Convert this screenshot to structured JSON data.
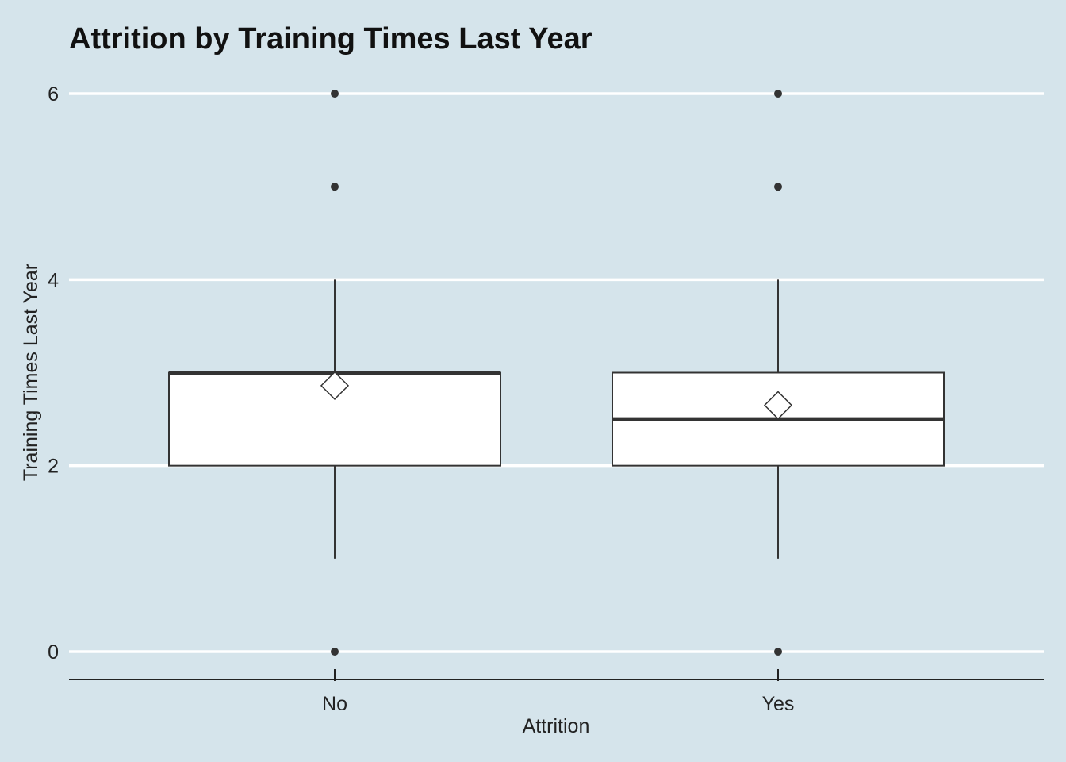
{
  "chart_data": {
    "type": "boxplot",
    "title": "Attrition by Training Times Last Year",
    "xlabel": "Attrition",
    "ylabel": "Training Times Last Year",
    "categories": [
      "No",
      "Yes"
    ],
    "ylim": [
      -0.3,
      6.3
    ],
    "yticks": [
      0,
      2,
      4,
      6
    ],
    "ytick_labels": [
      "0",
      "2",
      "4",
      "6"
    ],
    "grid": "horizontal major lines only",
    "legend": "none",
    "boxes": [
      {
        "category": "No",
        "whisker_low": 1,
        "q1": 2,
        "median": 3,
        "q3": 3,
        "whisker_high": 4,
        "mean": 2.86,
        "outliers": [
          0,
          5,
          6
        ]
      },
      {
        "category": "Yes",
        "whisker_low": 1,
        "q1": 2,
        "median": 2.5,
        "q3": 3,
        "whisker_high": 4,
        "mean": 2.65,
        "outliers": [
          0,
          5,
          6
        ]
      }
    ],
    "colors": {
      "background": "#d5e4eb",
      "gridline": "#ffffff",
      "box_fill": "#ffffff",
      "box_stroke": "#333333",
      "outlier": "#333333",
      "mean_marker_fill": "#ffffff",
      "axis_line": "#222222"
    }
  }
}
